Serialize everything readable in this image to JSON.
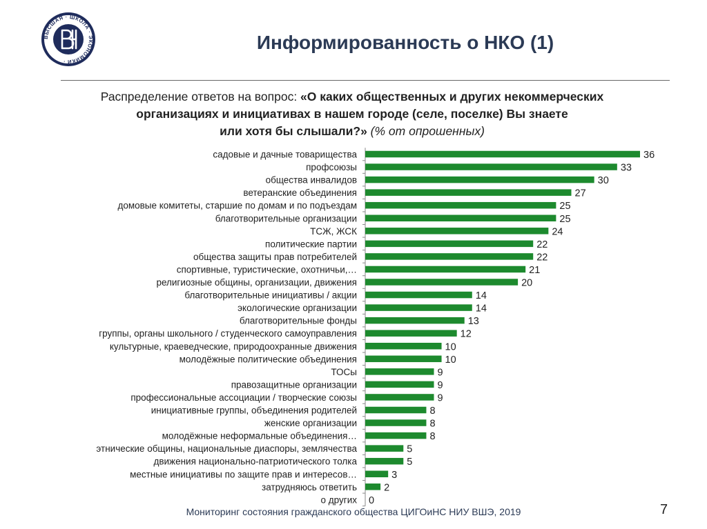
{
  "header": {
    "title": "Информированность о НКО (1)"
  },
  "subtitle": {
    "prefix": "Распределение ответов на вопрос: ",
    "question_bold_line1": "«О каких общественных и других некоммерческих",
    "question_bold_line2": "организациях и инициативах в нашем городе (селе, поселке) Вы знаете",
    "question_bold_line3": "или хотя бы слышали?»",
    "unit_italic": " (% от опрошенных)"
  },
  "chart_data": {
    "type": "bar",
    "orientation": "horizontal",
    "bar_color": "#1d8a2e",
    "categories": [
      "садовые и дачные товарищества",
      "профсоюзы",
      "общества инвалидов",
      "ветеранские объединения",
      "домовые комитеты, старшие по домам и по подъездам",
      "благотворительные организации",
      "ТСЖ, ЖСК",
      "политические партии",
      "общества защиты прав потребителей",
      "спортивные, туристические, охотничьи,…",
      "религиозные общины, организации, движения",
      "благотворительные инициативы / акции",
      "экологические организации",
      "благотворительные фонды",
      "группы, органы школьного / студенческого самоуправления",
      "культурные, краеведческие, природоохранные движения",
      "молодёжные политические объединения",
      "ТОСы",
      "правозащитные организации",
      "профессиональные ассоциации / творческие союзы",
      "инициативные группы, объединения родителей",
      "женские организации",
      "молодёжные неформальные объединения…",
      "этнические общины, национальные диаспоры, землячества",
      "движения национально-патриотического толка",
      "местные инициативы по защите прав и интересов…",
      "затрудняюсь ответить",
      "о других"
    ],
    "values": [
      36,
      33,
      30,
      27,
      25,
      25,
      24,
      22,
      22,
      21,
      20,
      14,
      14,
      13,
      12,
      10,
      10,
      9,
      9,
      9,
      8,
      8,
      8,
      5,
      5,
      3,
      2,
      0
    ],
    "xlim": [
      0,
      36
    ]
  },
  "footer": {
    "source": "Мониторинг состояния гражданского общества ЦИГОиНС НИУ ВШЭ, 2019",
    "page_number": "7"
  },
  "logo": {
    "ring_text": "ВЫСШАЯ · ШКОЛА · ЭКОНОМИКИ ·",
    "colors": {
      "primary": "#1f2c5c"
    }
  }
}
